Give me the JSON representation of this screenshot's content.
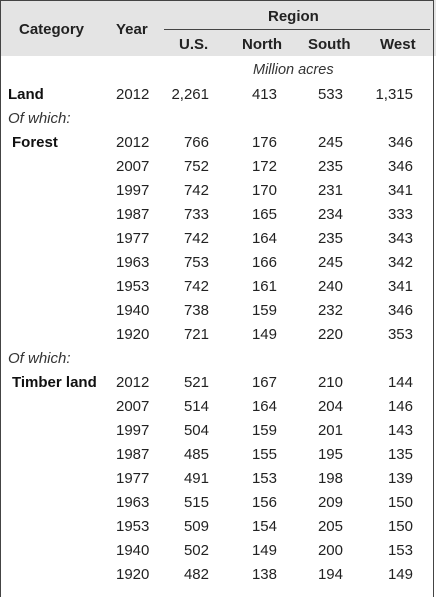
{
  "header": {
    "category": "Category",
    "year": "Year",
    "region": "Region",
    "cols": [
      "U.S.",
      "North",
      "South",
      "West"
    ]
  },
  "units": "Million acres",
  "land": {
    "label": "Land",
    "year": "2012",
    "values": [
      "2,261",
      "413",
      "533",
      "1,315"
    ]
  },
  "of_which_1": "Of which:",
  "forest": {
    "label": "Forest",
    "rows": [
      {
        "year": "2012",
        "values": [
          "766",
          "176",
          "245",
          "346"
        ]
      },
      {
        "year": "2007",
        "values": [
          "752",
          "172",
          "235",
          "346"
        ]
      },
      {
        "year": "1997",
        "values": [
          "742",
          "170",
          "231",
          "341"
        ]
      },
      {
        "year": "1987",
        "values": [
          "733",
          "165",
          "234",
          "333"
        ]
      },
      {
        "year": "1977",
        "values": [
          "742",
          "164",
          "235",
          "343"
        ]
      },
      {
        "year": "1963",
        "values": [
          "753",
          "166",
          "245",
          "342"
        ]
      },
      {
        "year": "1953",
        "values": [
          "742",
          "161",
          "240",
          "341"
        ]
      },
      {
        "year": "1940",
        "values": [
          "738",
          "159",
          "232",
          "346"
        ]
      },
      {
        "year": "1920",
        "values": [
          "721",
          "149",
          "220",
          "353"
        ]
      }
    ]
  },
  "of_which_2": "Of which:",
  "timber": {
    "label": "Timber land",
    "rows": [
      {
        "year": "2012",
        "values": [
          "521",
          "167",
          "210",
          "144"
        ]
      },
      {
        "year": "2007",
        "values": [
          "514",
          "164",
          "204",
          "146"
        ]
      },
      {
        "year": "1997",
        "values": [
          "504",
          "159",
          "201",
          "143"
        ]
      },
      {
        "year": "1987",
        "values": [
          "485",
          "155",
          "195",
          "135"
        ]
      },
      {
        "year": "1977",
        "values": [
          "491",
          "153",
          "198",
          "139"
        ]
      },
      {
        "year": "1963",
        "values": [
          "515",
          "156",
          "209",
          "150"
        ]
      },
      {
        "year": "1953",
        "values": [
          "509",
          "154",
          "205",
          "150"
        ]
      },
      {
        "year": "1940",
        "values": [
          "502",
          "149",
          "200",
          "153"
        ]
      },
      {
        "year": "1920",
        "values": [
          "482",
          "138",
          "194",
          "149"
        ]
      }
    ]
  }
}
